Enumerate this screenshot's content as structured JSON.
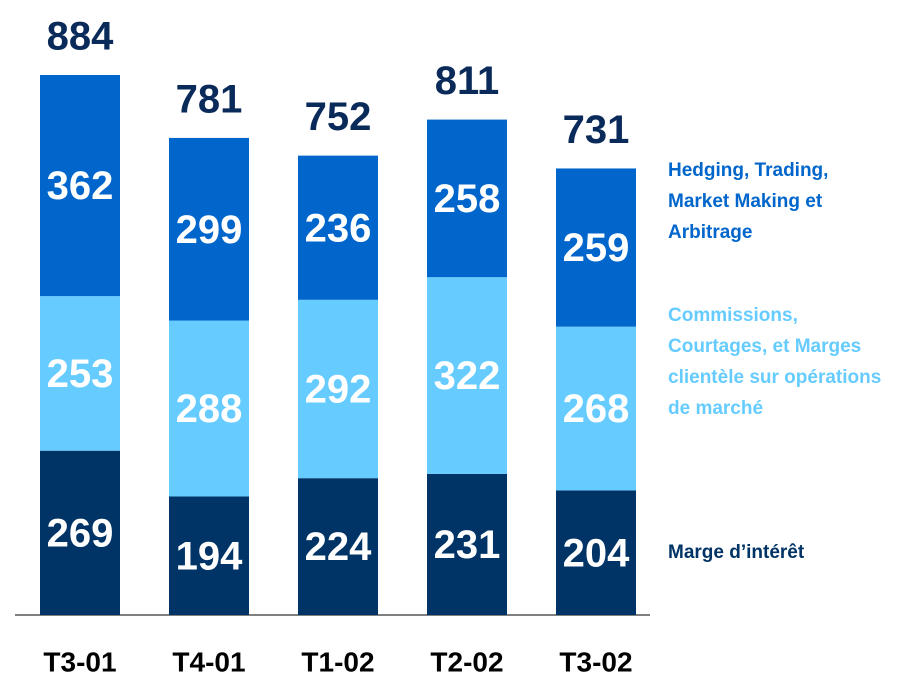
{
  "chart_data": {
    "type": "stacked_bar",
    "categories": [
      "T3-01",
      "T4-01",
      "T1-02",
      "T2-02",
      "T3-02"
    ],
    "series": [
      {
        "name": "Marge d’intérêt",
        "color": "#003366",
        "values": [
          269,
          194,
          224,
          231,
          204
        ]
      },
      {
        "name": "Commissions, Courtages, et Marges clientèle sur opérations de marché",
        "color": "#66ccff",
        "values": [
          253,
          288,
          292,
          322,
          268
        ]
      },
      {
        "name": "Hedging, Trading, Market Making et Arbitrage",
        "color": "#0066cc",
        "values": [
          362,
          299,
          236,
          258,
          259
        ]
      }
    ],
    "totals": [
      884,
      781,
      752,
      811,
      731
    ]
  }
}
